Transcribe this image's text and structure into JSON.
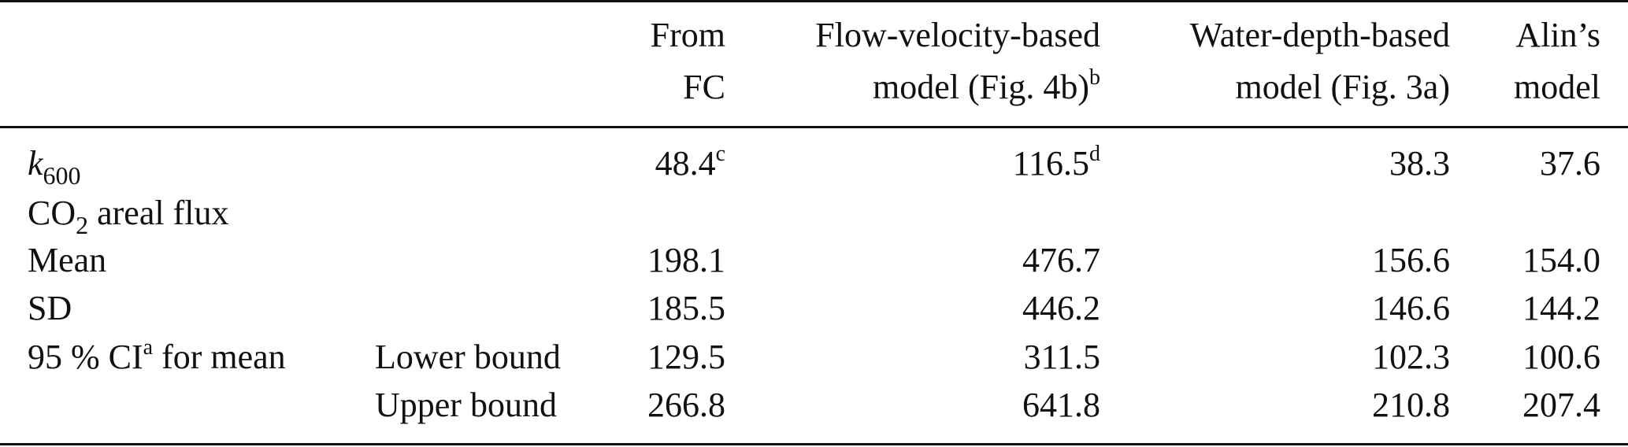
{
  "header": {
    "col_fc": [
      "From",
      "FC"
    ],
    "col_flow": [
      "Flow-velocity-based",
      "model (Fig. 4b)"
    ],
    "col_flow_sup": "b",
    "col_depth": [
      "Water-depth-based",
      "model (Fig. 3a)"
    ],
    "col_alin": [
      "Alin’s",
      "model"
    ]
  },
  "rows": {
    "k600": {
      "label_main": "k",
      "label_sub": "600",
      "fc": "48.4",
      "fc_sup": "c",
      "flow": "116.5",
      "flow_sup": "d",
      "depth": "38.3",
      "alin": "37.6"
    },
    "co2": {
      "label_pre": "CO",
      "label_sub": "2",
      "label_post": " areal flux"
    },
    "mean": {
      "label": "Mean",
      "fc": "198.1",
      "flow": "476.7",
      "depth": "156.6",
      "alin": "154.0"
    },
    "sd": {
      "label": "SD",
      "fc": "185.5",
      "flow": "446.2",
      "depth": "146.6",
      "alin": "144.2"
    },
    "ci_lower": {
      "label_pre": "95 % CI",
      "label_sup": "a",
      "label_post": " for mean",
      "sublabel": "Lower bound",
      "fc": "129.5",
      "flow": "311.5",
      "depth": "102.3",
      "alin": "100.6"
    },
    "ci_upper": {
      "sublabel": "Upper bound",
      "fc": "266.8",
      "flow": "641.8",
      "depth": "210.8",
      "alin": "207.4"
    }
  }
}
